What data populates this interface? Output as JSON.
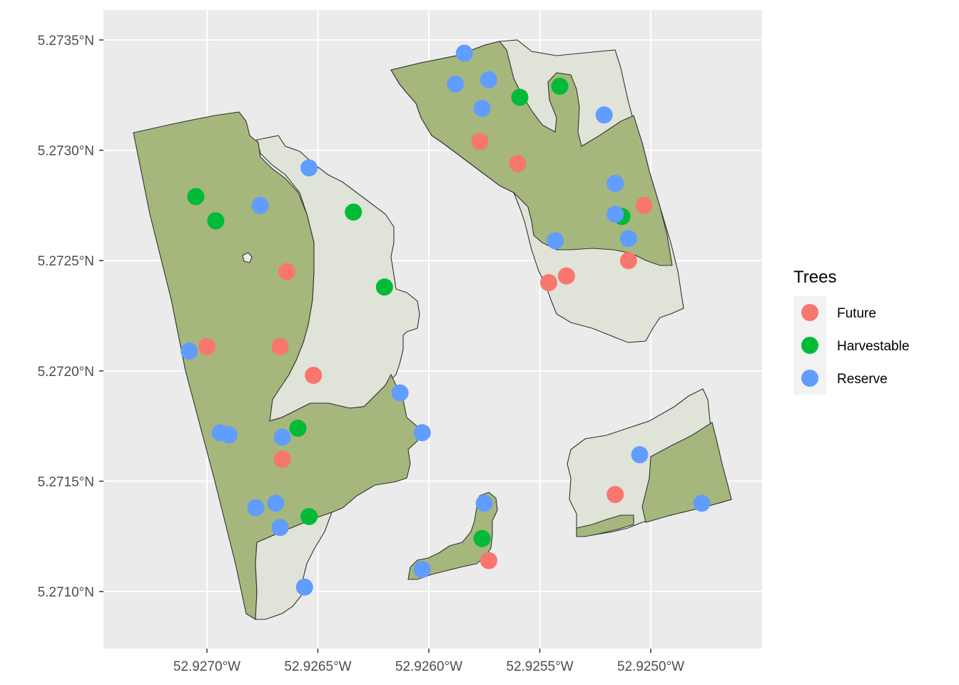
{
  "chart_data": {
    "type": "map",
    "axes": {
      "x_ticks": [
        "52.9270°W",
        "52.9265°W",
        "52.9260°W",
        "52.9255°W",
        "52.9250°W"
      ],
      "y_ticks": [
        "5.2735°N",
        "5.2730°N",
        "5.2725°N",
        "5.2720°N",
        "5.2715°N",
        "5.2710°N"
      ],
      "x_tick_values": [
        -52.927,
        -52.9265,
        -52.926,
        -52.9255,
        -52.925
      ],
      "y_tick_values": [
        5.2735,
        5.273,
        5.2725,
        5.272,
        5.2715,
        5.271
      ],
      "xlim": [
        -52.92737,
        -52.92465
      ],
      "ylim": [
        5.27075,
        5.27364
      ],
      "grid": true
    },
    "legend": {
      "title": "Trees",
      "placement": "right",
      "entries": [
        {
          "label": "Future",
          "color": "#F8766D"
        },
        {
          "label": "Harvestable",
          "color": "#00BA38"
        },
        {
          "label": "Reserve",
          "color": "#619CFF"
        }
      ]
    },
    "colors": {
      "panel_background": "#EBEBEB",
      "grid": "#FFFFFF",
      "area_light": "#DFE3D8",
      "area_dark": "#A5B77C",
      "outline": "#333333"
    },
    "points": [
      {
        "lon": -52.927,
        "lat": 5.27211,
        "class": "Future"
      },
      {
        "lon": -52.92664,
        "lat": 5.27245,
        "class": "Future"
      },
      {
        "lon": -52.92667,
        "lat": 5.27211,
        "class": "Future"
      },
      {
        "lon": -52.92652,
        "lat": 5.27198,
        "class": "Future"
      },
      {
        "lon": -52.92666,
        "lat": 5.2716,
        "class": "Future"
      },
      {
        "lon": -52.92577,
        "lat": 5.27304,
        "class": "Future"
      },
      {
        "lon": -52.9256,
        "lat": 5.27294,
        "class": "Future"
      },
      {
        "lon": -52.92546,
        "lat": 5.2724,
        "class": "Future"
      },
      {
        "lon": -52.92538,
        "lat": 5.27243,
        "class": "Future"
      },
      {
        "lon": -52.92503,
        "lat": 5.27275,
        "class": "Future"
      },
      {
        "lon": -52.9251,
        "lat": 5.2725,
        "class": "Future"
      },
      {
        "lon": -52.92573,
        "lat": 5.27114,
        "class": "Future"
      },
      {
        "lon": -52.92516,
        "lat": 5.27144,
        "class": "Future"
      },
      {
        "lon": -52.92705,
        "lat": 5.27279,
        "class": "Harvestable"
      },
      {
        "lon": -52.92696,
        "lat": 5.27268,
        "class": "Harvestable"
      },
      {
        "lon": -52.92634,
        "lat": 5.27272,
        "class": "Harvestable"
      },
      {
        "lon": -52.9262,
        "lat": 5.27238,
        "class": "Harvestable"
      },
      {
        "lon": -52.92659,
        "lat": 5.27174,
        "class": "Harvestable"
      },
      {
        "lon": -52.92654,
        "lat": 5.27134,
        "class": "Harvestable"
      },
      {
        "lon": -52.92559,
        "lat": 5.27324,
        "class": "Harvestable"
      },
      {
        "lon": -52.92541,
        "lat": 5.27329,
        "class": "Harvestable"
      },
      {
        "lon": -52.92513,
        "lat": 5.2727,
        "class": "Harvestable"
      },
      {
        "lon": -52.92576,
        "lat": 5.27124,
        "class": "Harvestable"
      },
      {
        "lon": -52.92654,
        "lat": 5.27292,
        "class": "Reserve"
      },
      {
        "lon": -52.92676,
        "lat": 5.27275,
        "class": "Reserve"
      },
      {
        "lon": -52.92708,
        "lat": 5.27209,
        "class": "Reserve"
      },
      {
        "lon": -52.92694,
        "lat": 5.27172,
        "class": "Reserve"
      },
      {
        "lon": -52.9269,
        "lat": 5.27171,
        "class": "Reserve"
      },
      {
        "lon": -52.92666,
        "lat": 5.2717,
        "class": "Reserve"
      },
      {
        "lon": -52.92678,
        "lat": 5.27138,
        "class": "Reserve"
      },
      {
        "lon": -52.92669,
        "lat": 5.2714,
        "class": "Reserve"
      },
      {
        "lon": -52.92667,
        "lat": 5.27129,
        "class": "Reserve"
      },
      {
        "lon": -52.92656,
        "lat": 5.27102,
        "class": "Reserve"
      },
      {
        "lon": -52.92613,
        "lat": 5.2719,
        "class": "Reserve"
      },
      {
        "lon": -52.92603,
        "lat": 5.27172,
        "class": "Reserve"
      },
      {
        "lon": -52.92603,
        "lat": 5.2711,
        "class": "Reserve"
      },
      {
        "lon": -52.92584,
        "lat": 5.27344,
        "class": "Reserve"
      },
      {
        "lon": -52.92588,
        "lat": 5.2733,
        "class": "Reserve"
      },
      {
        "lon": -52.92573,
        "lat": 5.27332,
        "class": "Reserve"
      },
      {
        "lon": -52.92576,
        "lat": 5.27319,
        "class": "Reserve"
      },
      {
        "lon": -52.92521,
        "lat": 5.27316,
        "class": "Reserve"
      },
      {
        "lon": -52.92516,
        "lat": 5.27285,
        "class": "Reserve"
      },
      {
        "lon": -52.92516,
        "lat": 5.27271,
        "class": "Reserve"
      },
      {
        "lon": -52.9251,
        "lat": 5.2726,
        "class": "Reserve"
      },
      {
        "lon": -52.92543,
        "lat": 5.27259,
        "class": "Reserve"
      },
      {
        "lon": -52.92575,
        "lat": 5.2714,
        "class": "Reserve"
      },
      {
        "lon": -52.92505,
        "lat": 5.27162,
        "class": "Reserve"
      },
      {
        "lon": -52.92477,
        "lat": 5.2714,
        "class": "Reserve"
      }
    ]
  }
}
